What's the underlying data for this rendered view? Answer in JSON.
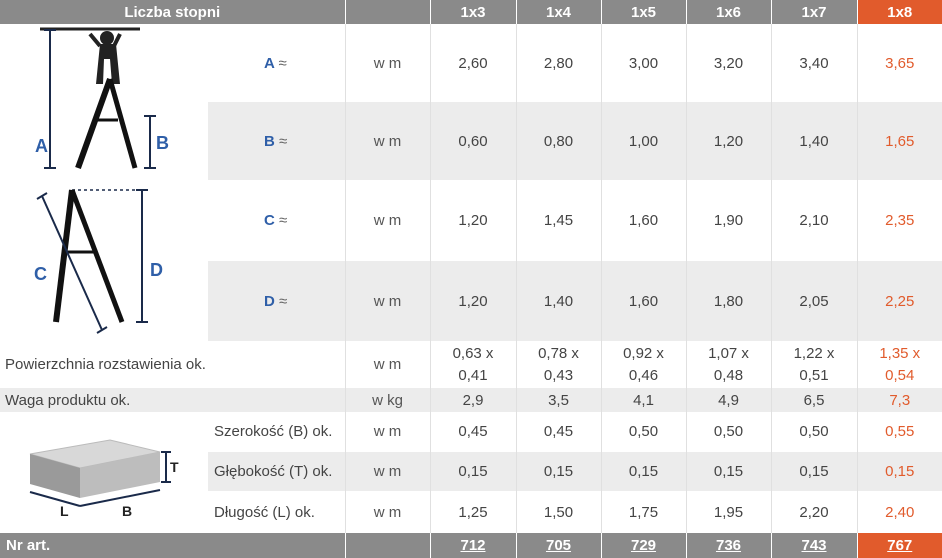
{
  "header": {
    "title": "Liczba stopni",
    "columns": [
      "1x3",
      "1x4",
      "1x5",
      "1x6",
      "1x7",
      "1x8"
    ]
  },
  "ladder_rows": [
    {
      "key": "A",
      "approx": "≈",
      "unit": "w m",
      "values": [
        "2,60",
        "2,80",
        "3,00",
        "3,20",
        "3,40",
        "3,65"
      ]
    },
    {
      "key": "B",
      "approx": "≈",
      "unit": "w m",
      "values": [
        "0,60",
        "0,80",
        "1,00",
        "1,20",
        "1,40",
        "1,65"
      ]
    },
    {
      "key": "C",
      "approx": "≈",
      "unit": "w m",
      "values": [
        "1,20",
        "1,45",
        "1,60",
        "1,90",
        "2,10",
        "2,35"
      ]
    },
    {
      "key": "D",
      "approx": "≈",
      "unit": "w m",
      "values": [
        "1,20",
        "1,40",
        "1,60",
        "1,80",
        "2,05",
        "2,25"
      ]
    }
  ],
  "surface_row": {
    "label": "Powierzchnia rozstawienia ok.",
    "unit": "w m",
    "values": [
      [
        "0,63 x",
        "0,41"
      ],
      [
        "0,78 x",
        "0,43"
      ],
      [
        "0,92 x",
        "0,46"
      ],
      [
        "1,07 x",
        "0,48"
      ],
      [
        "1,22 x",
        "0,51"
      ],
      [
        "1,35 x",
        "0,54"
      ]
    ]
  },
  "weight_row": {
    "label": "Waga produktu ok.",
    "unit": "w kg",
    "values": [
      "2,9",
      "3,5",
      "4,1",
      "4,9",
      "6,5",
      "7,3"
    ]
  },
  "package_rows": [
    {
      "label": "Szerokość (B) ok.",
      "unit": "w m",
      "values": [
        "0,45",
        "0,45",
        "0,50",
        "0,50",
        "0,50",
        "0,55"
      ]
    },
    {
      "label": "Głębokość (T) ok.",
      "unit": "w m",
      "values": [
        "0,15",
        "0,15",
        "0,15",
        "0,15",
        "0,15",
        "0,15"
      ]
    },
    {
      "label": "Długość (L) ok.",
      "unit": "w m",
      "values": [
        "1,25",
        "1,50",
        "1,75",
        "1,95",
        "2,20",
        "2,40"
      ]
    }
  ],
  "diagram_labels": {
    "ladder_top": [
      "A",
      "B"
    ],
    "ladder_bottom": [
      "C",
      "D"
    ],
    "package": [
      "T",
      "L",
      "B"
    ]
  },
  "footer": {
    "label": "Nr art.",
    "articles": [
      "712",
      "705",
      "729",
      "736",
      "743",
      "767"
    ]
  },
  "colors": {
    "header_bg": "#8a8a8a",
    "accent": "#e15b2c",
    "key_blue": "#2f5fa8",
    "shade": "#ececec"
  }
}
